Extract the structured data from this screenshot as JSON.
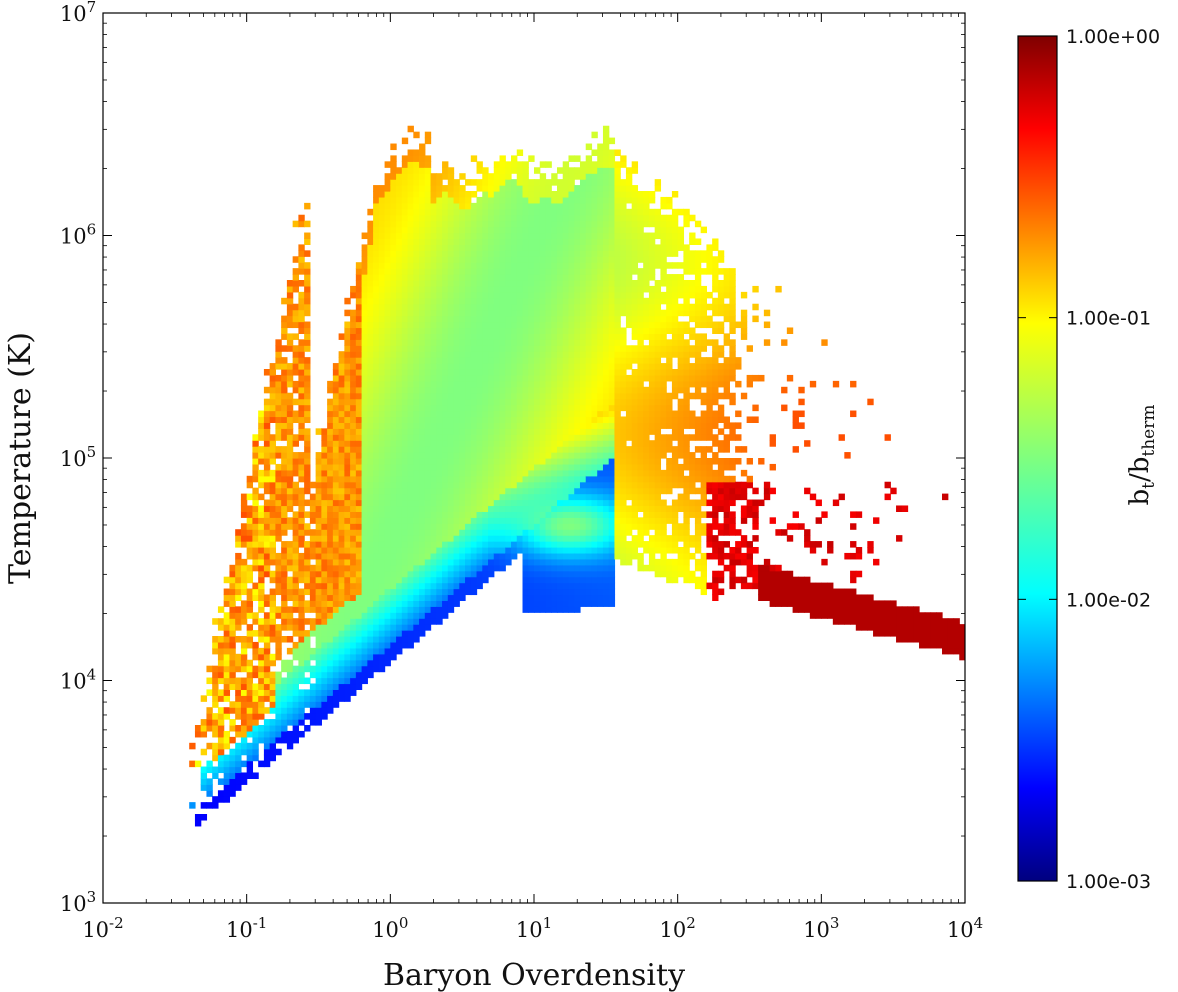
{
  "chart_data": {
    "type": "heatmap",
    "xlabel": "Baryon Overdensity",
    "ylabel": "Temperature  (K)",
    "xscale": "log",
    "yscale": "log",
    "xlim": [
      0.01,
      10000
    ],
    "ylim": [
      1000,
      10000000
    ],
    "x_ticks": [
      {
        "base": "10",
        "exp": "-2"
      },
      {
        "base": "10",
        "exp": "-1"
      },
      {
        "base": "10",
        "exp": "0"
      },
      {
        "base": "10",
        "exp": "1"
      },
      {
        "base": "10",
        "exp": "2"
      },
      {
        "base": "10",
        "exp": "3"
      },
      {
        "base": "10",
        "exp": "4"
      }
    ],
    "y_ticks": [
      {
        "base": "10",
        "exp": "3"
      },
      {
        "base": "10",
        "exp": "4"
      },
      {
        "base": "10",
        "exp": "5"
      },
      {
        "base": "10",
        "exp": "6"
      },
      {
        "base": "10",
        "exp": "7"
      }
    ],
    "colorbar": {
      "label_main": "b",
      "label_sub1": "t",
      "label_div": "/b",
      "label_sub2": "therm",
      "scale": "log",
      "range": [
        0.001,
        1.0
      ],
      "ticks": [
        "1.00e+00",
        "1.00e-01",
        "1.00e-02",
        "1.00e-03"
      ],
      "colormap": "jet"
    },
    "description_regions": {
      "equation_of_state_ridge": {
        "x_range": [
          0.035,
          30
        ],
        "T_at_x_0_035": 2100,
        "T_at_x_10": 45000,
        "color_value": 0.005
      },
      "hot_halo_cap_T": 3000000,
      "dense_cold_tail": {
        "x_range": [
          200,
          10000
        ],
        "T_range": [
          30000,
          15000
        ],
        "color_value": 0.9
      },
      "bulk_color_value": 0.4
    }
  }
}
